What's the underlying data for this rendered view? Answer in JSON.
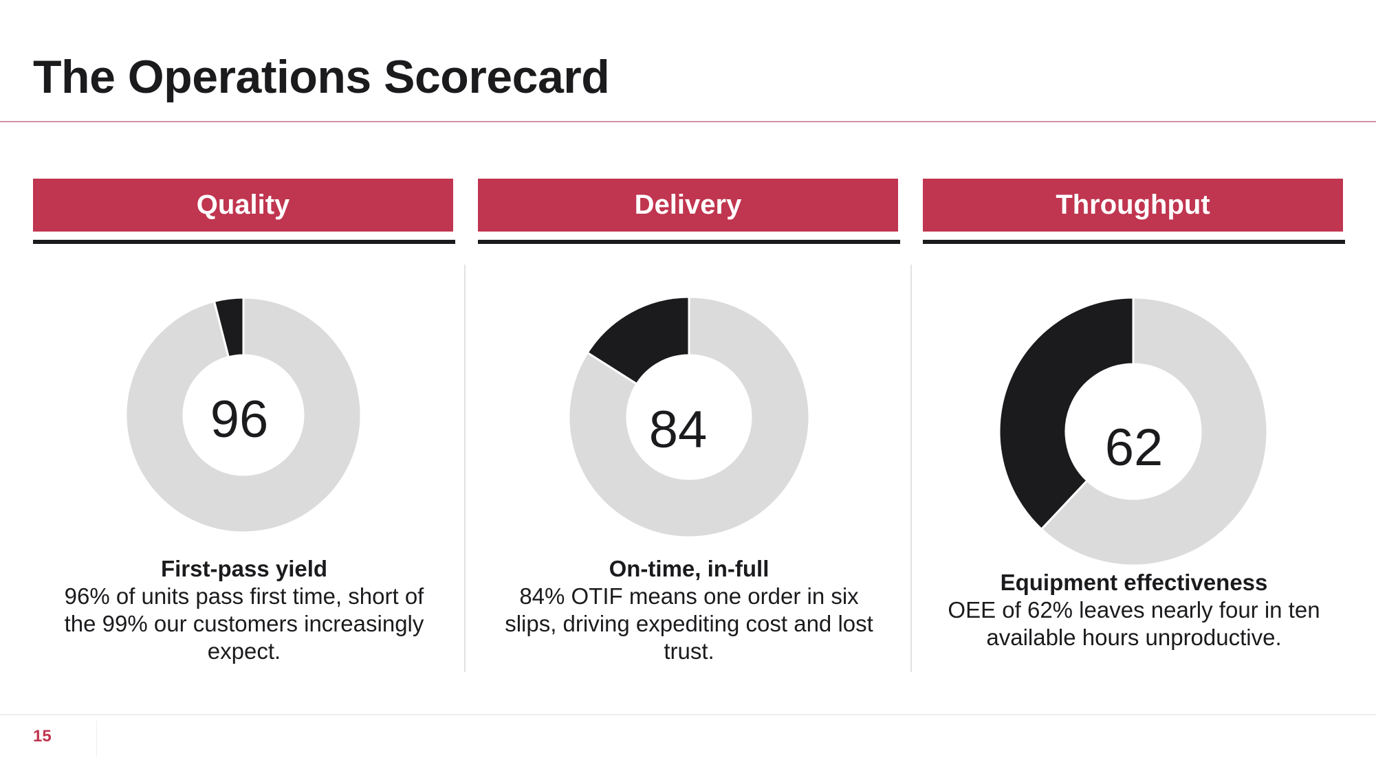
{
  "slide": {
    "title": "The Operations Scorecard",
    "page_number": "15",
    "accent_color": "#c0354f",
    "remainder_color": "#dcdbdc",
    "highlight_color": "#1b1a1d"
  },
  "chart_data": [
    {
      "type": "pie",
      "header": "Quality",
      "center_label": "96",
      "slices": [
        {
          "label": "First-pass yield",
          "value": 96
        },
        {
          "label": "Remainder",
          "value": 4
        }
      ],
      "caption_title": "First-pass yield",
      "caption_text": "96% of units pass first time, short of the 99% our customers increasingly expect."
    },
    {
      "type": "pie",
      "header": "Delivery",
      "center_label": "84",
      "slices": [
        {
          "label": "On-time, in-full",
          "value": 84
        },
        {
          "label": "Remainder",
          "value": 16
        }
      ],
      "caption_title": "On-time, in-full",
      "caption_text": "84% OTIF means one order in six slips, driving expediting cost and lost trust."
    },
    {
      "type": "pie",
      "header": "Throughput",
      "center_label": "62",
      "slices": [
        {
          "label": "Equipment effectiveness",
          "value": 62
        },
        {
          "label": "Remainder",
          "value": 38
        }
      ],
      "caption_title": "Equipment effectiveness",
      "caption_text": "OEE of 62% leaves nearly four in ten available hours unproductive."
    }
  ]
}
